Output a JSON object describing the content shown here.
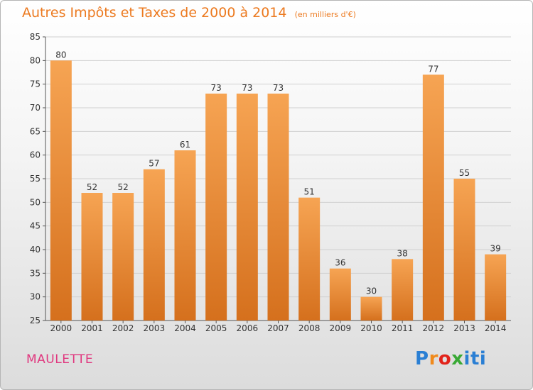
{
  "title": "Autres Impôts et Taxes de 2000 à 2014",
  "unit_note": "(en milliers d'€)",
  "commune": "MAULETTE",
  "logo": {
    "text": "Proxiti",
    "colors": [
      "#2a7fd4",
      "#f08a1c",
      "#e2231a",
      "#39a935",
      "#2a7fd4"
    ]
  },
  "colors": {
    "bar_top": "#f6a453",
    "bar_bottom": "#d5701d",
    "title": "#ec7a20",
    "commune": "#e0387f",
    "grid": "#d0d0d0"
  },
  "chart_data": {
    "type": "bar",
    "title": "Autres Impôts et Taxes de 2000 à 2014",
    "subtitle": "(en milliers d'€)",
    "xlabel": "",
    "ylabel": "",
    "categories": [
      "2000",
      "2001",
      "2002",
      "2003",
      "2004",
      "2005",
      "2006",
      "2007",
      "2008",
      "2009",
      "2010",
      "2011",
      "2012",
      "2013",
      "2014"
    ],
    "values": [
      80,
      52,
      52,
      57,
      61,
      73,
      73,
      73,
      51,
      36,
      30,
      38,
      77,
      55,
      39
    ],
    "ylim": [
      25,
      85
    ],
    "yticks": [
      25,
      30,
      35,
      40,
      45,
      50,
      55,
      60,
      65,
      70,
      75,
      80,
      85
    ],
    "grid": true,
    "legend": "none"
  }
}
